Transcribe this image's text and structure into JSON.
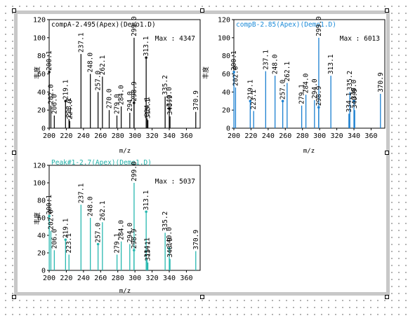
{
  "colors": {
    "compA": "#111111",
    "compB": "#1a7fd0",
    "peak": "#28b8b0",
    "titleA": "#000000",
    "titleB": "#1a8ad8",
    "titlePeak": "#20b0a8"
  },
  "chart_data": [
    {
      "id": "A",
      "type": "bar",
      "title": "compA-2.495(Apex)(Demo1.D)",
      "max_label": "Max : 4347",
      "xlabel": "m/z",
      "ylabel": "丰度",
      "xlim": [
        200,
        376
      ],
      "ylim": [
        0,
        120
      ],
      "xticks": [
        200,
        220,
        240,
        260,
        280,
        300,
        320,
        340,
        360
      ],
      "yticks": [
        0,
        20,
        40,
        60,
        80,
        100,
        120
      ],
      "peaks": [
        {
          "x": 200.1,
          "y": 62,
          "label": "200.1",
          "marker": true
        },
        {
          "x": 202.0,
          "y": 25,
          "label": "202.0",
          "marker": false
        },
        {
          "x": 206.0,
          "y": 14,
          "label": "206.0",
          "marker": false
        },
        {
          "x": 219.1,
          "y": 30,
          "label": "219.1",
          "marker": true
        },
        {
          "x": 223.1,
          "y": 10,
          "label": "223.1",
          "marker": false
        },
        {
          "x": 224.0,
          "y": 8,
          "label": "224.0",
          "marker": false
        },
        {
          "x": 237.1,
          "y": 82,
          "label": "237.1",
          "marker": false
        },
        {
          "x": 248.0,
          "y": 60,
          "label": "248.0",
          "marker": false
        },
        {
          "x": 257.0,
          "y": 40,
          "label": "257.0",
          "marker": false
        },
        {
          "x": 262.1,
          "y": 57,
          "label": "262.1",
          "marker": false
        },
        {
          "x": 270.0,
          "y": 20,
          "label": "270.0",
          "marker": false
        },
        {
          "x": 279.0,
          "y": 14,
          "label": "279.0",
          "marker": false
        },
        {
          "x": 284.0,
          "y": 24,
          "label": "284.0",
          "marker": false
        },
        {
          "x": 294.0,
          "y": 17,
          "label": "294.0",
          "marker": false
        },
        {
          "x": 298.9,
          "y": 28,
          "label": "298.9",
          "marker": true
        },
        {
          "x": 299.0,
          "y": 100,
          "label": "299.0",
          "marker": false
        },
        {
          "x": 313.1,
          "y": 78,
          "label": "313.1",
          "marker": true
        },
        {
          "x": 314.1,
          "y": 11,
          "label": "314.1",
          "marker": false
        },
        {
          "x": 315.1,
          "y": 9,
          "label": "315.1",
          "marker": false
        },
        {
          "x": 335.2,
          "y": 35,
          "label": "335.2",
          "marker": false
        },
        {
          "x": 340.0,
          "y": 22,
          "label": "340.0",
          "marker": true
        },
        {
          "x": 340.9,
          "y": 13,
          "label": "340.9",
          "marker": false
        },
        {
          "x": 370.9,
          "y": 18,
          "label": "370.9",
          "marker": false
        }
      ]
    },
    {
      "id": "B",
      "type": "bar",
      "title": "compB-2.85(Apex)(Demo1.D)",
      "max_label": "Max : 6013",
      "xlabel": "m/z",
      "ylabel": "丰度",
      "xlim": [
        200,
        376
      ],
      "ylim": [
        0,
        120
      ],
      "xticks": [
        200,
        220,
        240,
        260,
        280,
        300,
        320,
        340,
        360
      ],
      "yticks": [
        0,
        20,
        40,
        60,
        80,
        100,
        120
      ],
      "peaks": [
        {
          "x": 200.1,
          "y": 62,
          "label": "200.1",
          "marker": true
        },
        {
          "x": 202.0,
          "y": 45,
          "label": "202.0",
          "marker": false
        },
        {
          "x": 219.1,
          "y": 30,
          "label": "219.1",
          "marker": true
        },
        {
          "x": 223.1,
          "y": 19,
          "label": "223.1",
          "marker": false
        },
        {
          "x": 237.1,
          "y": 63,
          "label": "237.1",
          "marker": false
        },
        {
          "x": 248.0,
          "y": 58,
          "label": "248.0",
          "marker": false
        },
        {
          "x": 257.0,
          "y": 30,
          "label": "257.0",
          "marker": true
        },
        {
          "x": 262.1,
          "y": 50,
          "label": "262.1",
          "marker": false
        },
        {
          "x": 279.1,
          "y": 25,
          "label": "279.1",
          "marker": false
        },
        {
          "x": 284.0,
          "y": 37,
          "label": "284.0",
          "marker": false
        },
        {
          "x": 294.0,
          "y": 31,
          "label": "294.0",
          "marker": false
        },
        {
          "x": 298.9,
          "y": 23,
          "label": "298.9",
          "marker": true
        },
        {
          "x": 299.0,
          "y": 100,
          "label": "299.0",
          "marker": false
        },
        {
          "x": 313.1,
          "y": 58,
          "label": "313.1",
          "marker": false
        },
        {
          "x": 334.1,
          "y": 16,
          "label": "334.1",
          "marker": false
        },
        {
          "x": 335.2,
          "y": 40,
          "label": "335.2",
          "marker": false
        },
        {
          "x": 340.0,
          "y": 30,
          "label": "340.0",
          "marker": true
        },
        {
          "x": 340.9,
          "y": 20,
          "label": "340.9",
          "marker": false
        },
        {
          "x": 370.9,
          "y": 38,
          "label": "370.9",
          "marker": false
        }
      ]
    },
    {
      "id": "P",
      "type": "bar",
      "title": "Peak#1-2.7(Apex)(Demo1.D)",
      "max_label": "Max : 5037",
      "xlabel": "m/z",
      "ylabel": "丰度",
      "xlim": [
        200,
        376
      ],
      "ylim": [
        0,
        120
      ],
      "xticks": [
        200,
        220,
        240,
        260,
        280,
        300,
        320,
        340,
        360
      ],
      "yticks": [
        0,
        20,
        40,
        60,
        80,
        100,
        120
      ],
      "peaks": [
        {
          "x": 200.1,
          "y": 62,
          "label": "200.1",
          "marker": true
        },
        {
          "x": 202.0,
          "y": 45,
          "label": "202.0",
          "marker": false
        },
        {
          "x": 206.0,
          "y": 23,
          "label": "206.0",
          "marker": false
        },
        {
          "x": 219.1,
          "y": 35,
          "label": "219.1",
          "marker": true
        },
        {
          "x": 223.1,
          "y": 18,
          "label": "223.1",
          "marker": false
        },
        {
          "x": 237.1,
          "y": 75,
          "label": "237.1",
          "marker": false
        },
        {
          "x": 248.0,
          "y": 60,
          "label": "248.0",
          "marker": false
        },
        {
          "x": 257.0,
          "y": 30,
          "label": "257.0",
          "marker": true
        },
        {
          "x": 262.1,
          "y": 55,
          "label": "262.1",
          "marker": false
        },
        {
          "x": 279.1,
          "y": 18,
          "label": "279.1",
          "marker": false
        },
        {
          "x": 284.0,
          "y": 33,
          "label": "284.0",
          "marker": false
        },
        {
          "x": 294.0,
          "y": 30,
          "label": "294.0",
          "marker": false
        },
        {
          "x": 298.9,
          "y": 23,
          "label": "298.9",
          "marker": true
        },
        {
          "x": 299.0,
          "y": 100,
          "label": "299.0",
          "marker": false
        },
        {
          "x": 313.1,
          "y": 67,
          "label": "313.1",
          "marker": true
        },
        {
          "x": 314.1,
          "y": 13,
          "label": "314.1",
          "marker": false
        },
        {
          "x": 315.1,
          "y": 9,
          "label": "315.1",
          "marker": false
        },
        {
          "x": 335.2,
          "y": 43,
          "label": "335.2",
          "marker": false
        },
        {
          "x": 340.0,
          "y": 25,
          "label": "340.0",
          "marker": true
        },
        {
          "x": 340.9,
          "y": 13,
          "label": "340.9",
          "marker": false
        },
        {
          "x": 370.9,
          "y": 22,
          "label": "370.9",
          "marker": false
        }
      ]
    }
  ]
}
